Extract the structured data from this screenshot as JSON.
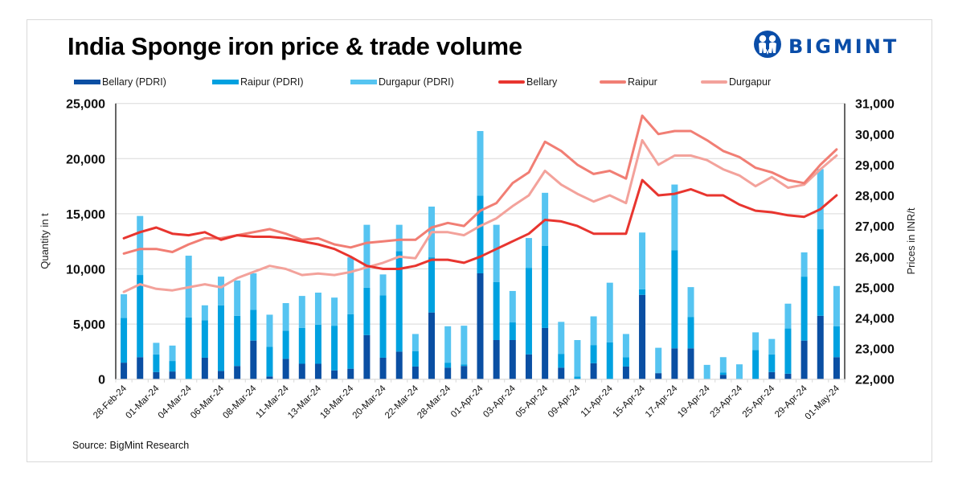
{
  "title": "India Sponge iron price & trade volume",
  "logo": {
    "text": "BIGMINT",
    "icon": "bigmint-people-logo-icon",
    "color": "#0A4DA8"
  },
  "source": "Source: BigMint Research",
  "colors": {
    "bellary_bar": "#0A4FA3",
    "raipur_bar": "#00A1E0",
    "durgapur_bar": "#56C4F1",
    "bellary_line": "#E8352F",
    "raipur_line": "#F17E74",
    "durgapur_line": "#F3A29B",
    "grid": "#d9d9d9"
  },
  "chart_data": {
    "type": "bar",
    "subtype": "stacked-bar-with-lines-dual-axis",
    "title": "India Sponge iron price & trade volume",
    "ylabel": "Quantity in t",
    "y2label": "Prices in INR/t",
    "xlabel": "",
    "ylim": [
      0,
      25000
    ],
    "y2lim": [
      22000,
      31000
    ],
    "yticks": [
      "0",
      "5,000",
      "10,000",
      "15,000",
      "20,000",
      "25,000"
    ],
    "y2ticks": [
      "22,000",
      "23,000",
      "24,000",
      "25,000",
      "26,000",
      "27,000",
      "28,000",
      "29,000",
      "30,000",
      "31,000"
    ],
    "grid": true,
    "legend_position": "top",
    "categories": [
      "28-Feb-24",
      "",
      "01-Mar-24",
      "",
      "04-Mar-24",
      "",
      "06-Mar-24",
      "",
      "08-Mar-24",
      "",
      "11-Mar-24",
      "",
      "13-Mar-24",
      "",
      "18-Mar-24",
      "",
      "20-Mar-24",
      "",
      "22-Mar-24",
      "",
      "28-Mar-24",
      "",
      "01-Apr-24",
      "",
      "03-Apr-24",
      "",
      "05-Apr-24",
      "",
      "09-Apr-24",
      "",
      "11-Apr-24",
      "",
      "15-Apr-24",
      "",
      "17-Apr-24",
      "",
      "19-Apr-24",
      "",
      "23-Apr-24",
      "",
      "25-Apr-24",
      "",
      "29-Apr-24",
      "",
      "01-May-24"
    ],
    "series": [
      {
        "name": "Bellary (PDRI)",
        "kind": "bar",
        "axis": "left",
        "values": [
          1500,
          2000,
          650,
          700,
          0,
          1950,
          750,
          1200,
          3500,
          250,
          1850,
          1400,
          1400,
          800,
          950,
          4000,
          1950,
          2500,
          1150,
          6050,
          1050,
          1200,
          9600,
          3550,
          3550,
          2250,
          4650,
          1050,
          0,
          1450,
          0,
          1150,
          7650,
          550,
          2800,
          2800,
          0,
          400,
          0,
          0,
          650,
          500,
          3500,
          5750,
          2000
        ]
      },
      {
        "name": "Raipur (PDRI)",
        "kind": "bar",
        "axis": "left",
        "values": [
          4050,
          7450,
          1600,
          950,
          5600,
          3400,
          5950,
          4550,
          2800,
          2700,
          2550,
          3250,
          3550,
          4050,
          4950,
          4300,
          5650,
          9100,
          1400,
          5000,
          450,
          150,
          7050,
          5250,
          1600,
          7850,
          7450,
          1250,
          250,
          1650,
          3350,
          850,
          500,
          0,
          8900,
          2850,
          0,
          200,
          0,
          2650,
          1600,
          4100,
          5800,
          7850,
          2800
        ]
      },
      {
        "name": "Durgapur (PDRI)",
        "kind": "bar",
        "axis": "left",
        "values": [
          2150,
          5350,
          1050,
          1400,
          5600,
          1350,
          2600,
          3200,
          3300,
          2900,
          2500,
          2900,
          2900,
          2550,
          5150,
          5700,
          1900,
          2400,
          1550,
          4600,
          3300,
          3500,
          5850,
          5200,
          2850,
          2700,
          4800,
          2900,
          3300,
          2600,
          5400,
          2100,
          5150,
          2300,
          5950,
          2700,
          1300,
          1400,
          1350,
          1600,
          1400,
          2250,
          2200,
          5450,
          3650
        ]
      },
      {
        "name": "Bellary",
        "kind": "line",
        "axis": "right",
        "values": [
          26600,
          26800,
          26950,
          26750,
          26700,
          26800,
          26550,
          26700,
          26650,
          26650,
          26600,
          26500,
          26400,
          26250,
          26000,
          25700,
          25600,
          25600,
          25700,
          25900,
          25900,
          25800,
          26000,
          26250,
          26500,
          26750,
          27200,
          27150,
          27000,
          26750,
          26750,
          26750,
          28500,
          28000,
          28050,
          28200,
          28000,
          28000,
          27700,
          27500,
          27450,
          27350,
          27300,
          27550,
          28000
        ]
      },
      {
        "name": "Raipur",
        "kind": "line",
        "axis": "right",
        "values": [
          26100,
          26250,
          26250,
          26150,
          26400,
          26600,
          26600,
          26700,
          26800,
          26900,
          26750,
          26550,
          26600,
          26400,
          26300,
          26450,
          26500,
          26550,
          26550,
          26950,
          27100,
          27000,
          27500,
          27750,
          28400,
          28750,
          29750,
          29450,
          29000,
          28700,
          28800,
          28550,
          30600,
          30000,
          30100,
          30100,
          29800,
          29450,
          29250,
          28900,
          28750,
          28500,
          28400,
          29000,
          29500
        ]
      },
      {
        "name": "Durgapur",
        "kind": "line",
        "axis": "right",
        "values": [
          24850,
          25100,
          24950,
          24900,
          25000,
          25100,
          25000,
          25300,
          25500,
          25700,
          25600,
          25400,
          25450,
          25400,
          25500,
          25650,
          25800,
          26000,
          25950,
          26800,
          26800,
          26700,
          27000,
          27250,
          27650,
          28000,
          28800,
          28350,
          28050,
          27800,
          28000,
          27750,
          29800,
          29000,
          29300,
          29300,
          29150,
          28850,
          28650,
          28300,
          28600,
          28250,
          28350,
          28850,
          29300
        ]
      }
    ]
  }
}
